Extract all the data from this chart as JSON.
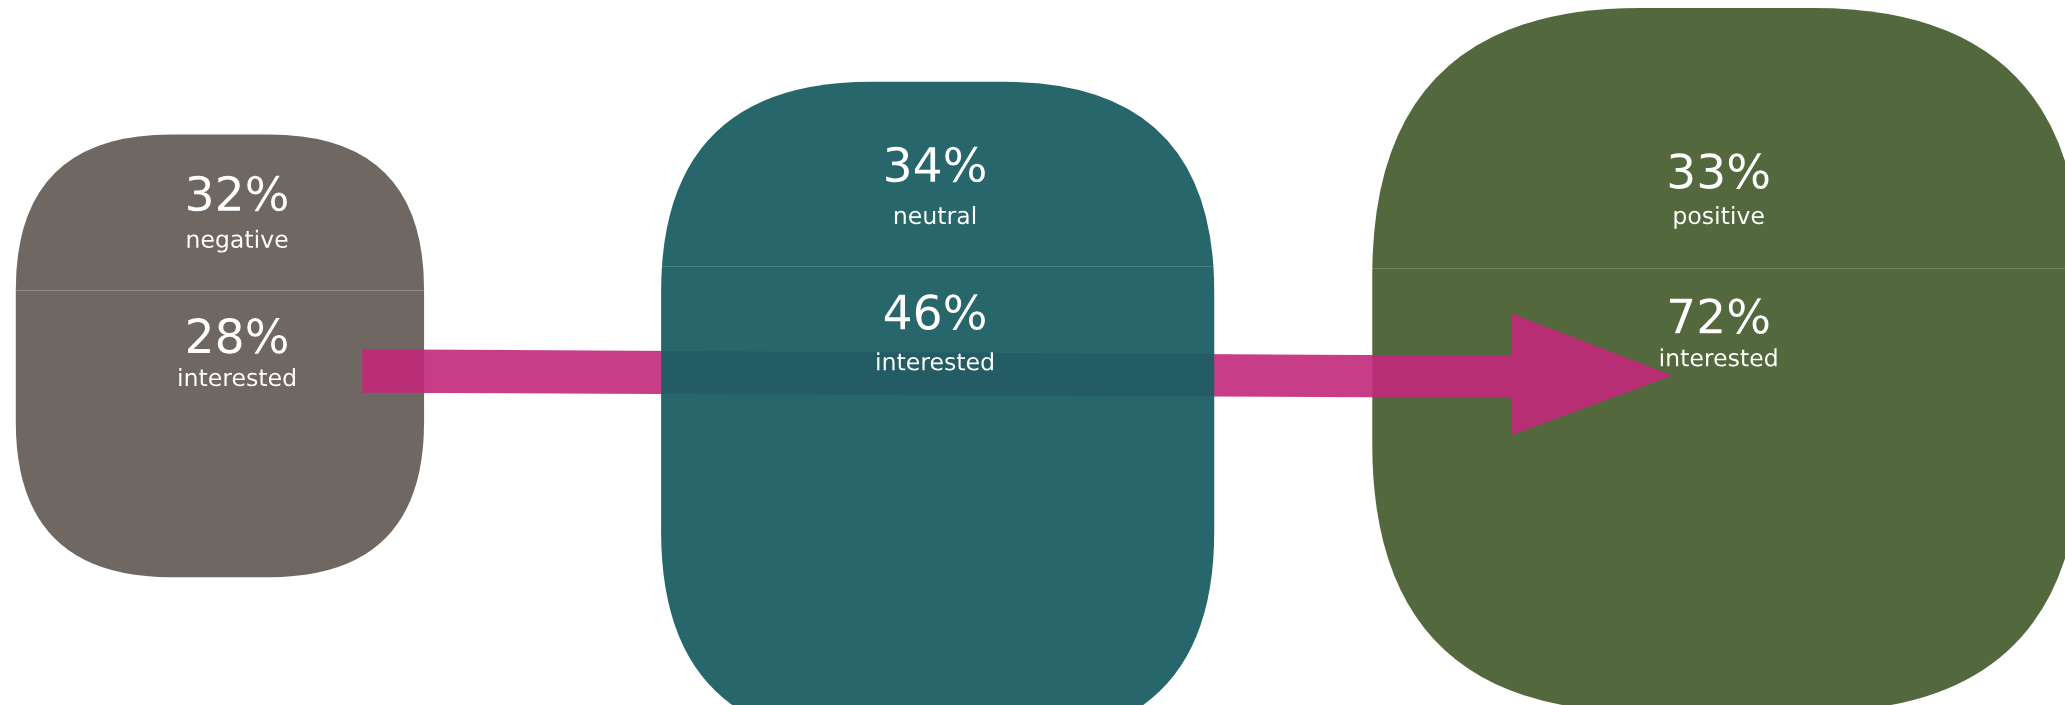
{
  "chart_data": {
    "type": "other",
    "categories": [
      "negative",
      "neutral",
      "positive"
    ],
    "series": [
      {
        "colors": [
          "#665f5a",
          "#1b5e63",
          "#4a6133"
        ],
        "values": [
          32,
          34,
          33
        ],
        "value_labels": [
          "32%",
          "34%",
          "33%"
        ]
      },
      {
        "name": "interested",
        "colors": [
          "#665f5a",
          "#1b5e63",
          "#4a6133"
        ],
        "values": [
          28,
          46,
          72
        ],
        "value_labels": [
          "28%",
          "46%",
          "72%"
        ]
      }
    ]
  }
}
